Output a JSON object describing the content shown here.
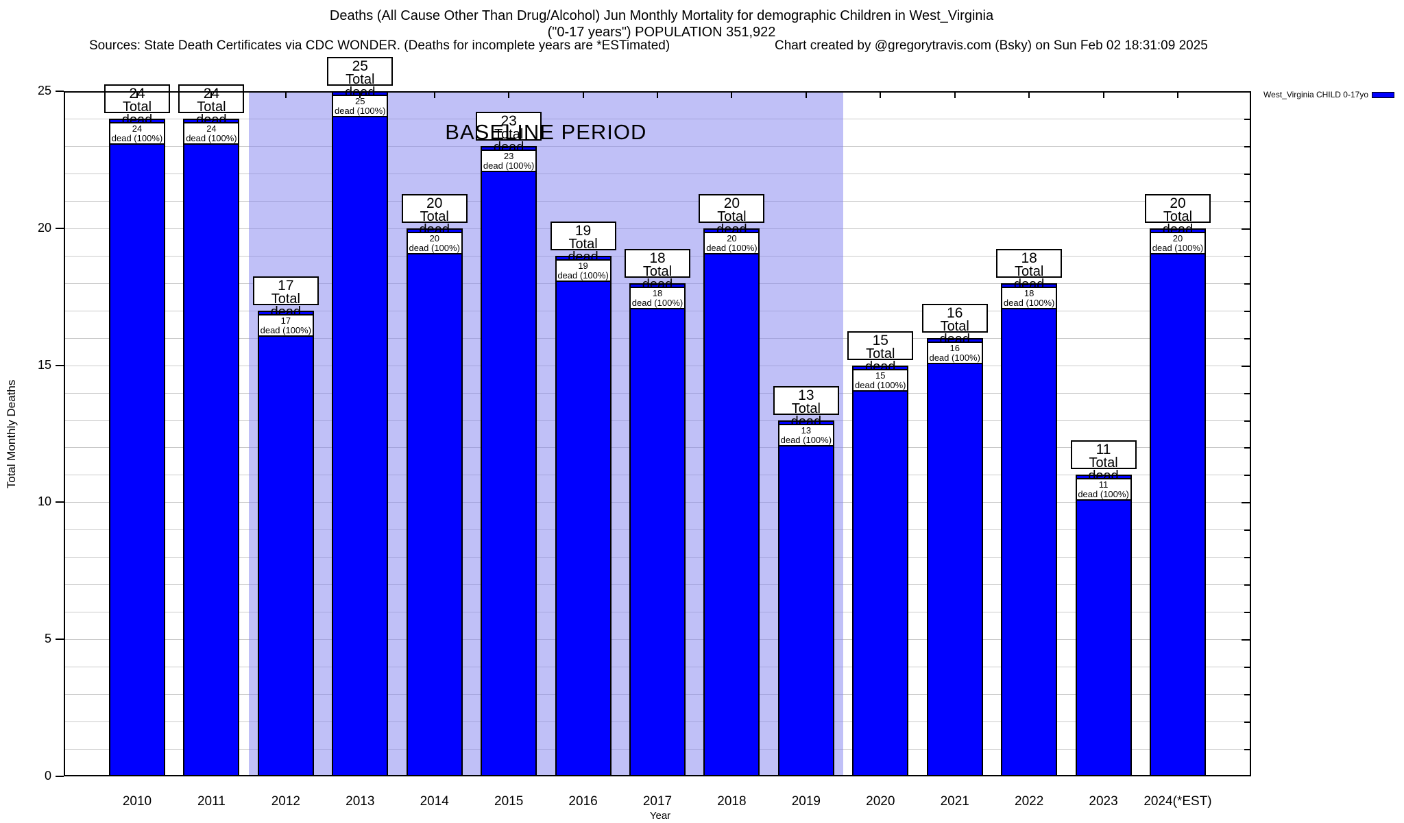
{
  "header": {
    "title_line1": "Deaths (All Cause Other Than Drug/Alcohol) Jun Monthly Mortality for demographic Children in West_Virginia",
    "title_line2": "(\"0-17 years\") POPULATION 351,922",
    "sources": "Sources: State Death Certificates via CDC WONDER. (Deaths for incomplete years are *ESTimated)",
    "credit": "Chart created by @gregorytravis.com (Bsky) on Sun Feb 02 18:31:09 2025"
  },
  "chart_data": {
    "type": "bar",
    "title": "Deaths (All Cause Other Than Drug/Alcohol) Jun Monthly Mortality for demographic Children in West_Virginia (\"0-17 years\") POPULATION 351,922",
    "xlabel": "Year",
    "ylabel": "Total Monthly Deaths",
    "ylim": [
      0,
      25
    ],
    "yticks": [
      0,
      5,
      10,
      15,
      20,
      25
    ],
    "grid": "horizontal gridlines every 1 unit",
    "legend_position": "top-right outside plot",
    "categories": [
      "2010",
      "2011",
      "2012",
      "2013",
      "2014",
      "2015",
      "2016",
      "2017",
      "2018",
      "2019",
      "2020",
      "2021",
      "2022",
      "2023",
      "2024(*EST)"
    ],
    "values": [
      24,
      24,
      17,
      25,
      20,
      23,
      19,
      18,
      20,
      13,
      15,
      16,
      18,
      11,
      20
    ],
    "series": [
      {
        "name": "West_Virginia CHILD 0-17yo",
        "color": "#0000ff"
      }
    ],
    "bar_labels": {
      "above_suffix": "Total dead",
      "inner_suffix": "dead (100%)"
    },
    "annotations": {
      "baseline_label": "BASELINE PERIOD",
      "baseline_from_year": "2012",
      "baseline_to_year": "2019",
      "baseline_color": "#c0c0f7"
    }
  },
  "legend": {
    "label": "West_Virginia CHILD 0-17yo",
    "swatch_color": "#0000ff"
  },
  "colors": {
    "bar": "#0000ff",
    "baseline_region": "#c0c0f7",
    "gridline": "#c9c9c9",
    "axis": "#000000"
  }
}
